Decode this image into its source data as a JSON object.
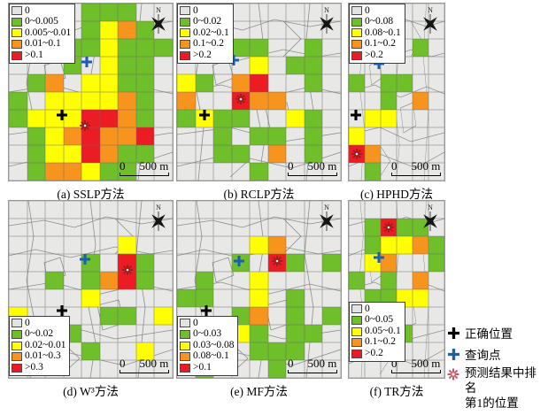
{
  "palette": {
    ".": "",
    "G": "#6FBF2A",
    "Y": "#FFFF00",
    "O": "#F7941E",
    "R": "#EC1C24",
    "zero_swatch": "#E3E3E2"
  },
  "marker_colors": {
    "query": "#1A5FB4",
    "correct": "#000000",
    "top1": "#9E1B1B",
    "top1_legend": "#D4566A"
  },
  "legend_swatch_order": [
    ".",
    "G",
    "Y",
    "O",
    "R"
  ],
  "north_label": "N",
  "scale": {
    "zero": "0",
    "distance": "500 m"
  },
  "panels": [
    {
      "id": "a",
      "caption": "(a) SSLP方法",
      "cols": 9,
      "rows": 10,
      "legend_position": "top-left",
      "legend_labels": [
        "0",
        "0~0.005",
        "0.005~0.01",
        "0.01~0.1",
        ">0.1"
      ],
      "grid": [
        "....GGG..",
        "....GYOG.",
        "...GGYGGG",
        "...G.YGG.",
        ".GO.YYGG.",
        "G.YYYYOG.",
        "GYYYRROG.",
        ".GYOROOR.",
        ".GYYROGG.",
        ".GOOYGG.."
      ],
      "markers": {
        "query": [
          4.3,
          3.3
        ],
        "correct": [
          2.9,
          6.3
        ],
        "top1": [
          4.2,
          6.9
        ]
      }
    },
    {
      "id": "b",
      "caption": "(b) RCLP方法",
      "cols": 9,
      "rows": 10,
      "legend_position": "top-left",
      "legend_labels": [
        "0",
        "0~0.02",
        "0.02~0.1",
        "0.1~0.2",
        ">0.2"
      ],
      "grid": [
        ".........",
        ".........",
        "...GG..G.",
        "....Y.GG.",
        "YG.OR..G.",
        "O..ROO...",
        "GYGG..YG.",
        "..G.GG.G.",
        "..GG.O.G.",
        "....G...."
      ],
      "markers": {
        "query": [
          3.1,
          3.2
        ],
        "correct": [
          1.5,
          6.3
        ],
        "top1": [
          3.5,
          5.4
        ]
      }
    },
    {
      "id": "c",
      "caption": "(c) HPHD方法",
      "cols": 6,
      "rows": 10,
      "legend_position": "top-left",
      "legend_labels": [
        "0",
        "0~0.08",
        "0.08~0.1",
        "0.1~0.2",
        ">0.2"
      ],
      "grid": [
        "......",
        "......",
        ".G..G.",
        "......",
        "G.GG..",
        "..G.O.",
        ".YY...",
        "Y.....",
        "RO....",
        ".G...."
      ],
      "markers": {
        "query": [
          1.9,
          3.4
        ],
        "correct": [
          0.45,
          6.3
        ],
        "top1": [
          0.5,
          8.5
        ]
      }
    },
    {
      "id": "d",
      "caption": "(d) W³方法",
      "cols": 9,
      "rows": 10,
      "legend_position": "bottom-left",
      "legend_labels": [
        "0",
        "0~0.02",
        "0.02~0.01",
        "0.01~0.3",
        ">0.3"
      ],
      "grid": [
        ".........",
        ".........",
        "......Y..",
        "....G.RG.",
        "..G.GORG.",
        "....Y....",
        "Y....GG.Y",
        "..GG.....",
        "....G..Y.",
        "........."
      ],
      "markers": {
        "query": [
          4.2,
          3.3
        ],
        "correct": [
          2.9,
          6.2
        ],
        "top1": [
          6.5,
          3.9
        ]
      }
    },
    {
      "id": "e",
      "caption": "(e) MF方法",
      "cols": 9,
      "rows": 10,
      "legend_position": "bottom-left",
      "legend_labels": [
        "0",
        "0~0.03",
        "0.03~0.08",
        "0.08~0.1",
        ">0.1"
      ],
      "grid": [
        ".........",
        ".........",
        "....YO...",
        "...G.RG.G",
        ".G..Y....",
        "GG..Y.G..",
        "...GO.G.G",
        ".O.YG.GG.",
        "..Y.GGG..",
        ".G...G..."
      ],
      "markers": {
        "query": [
          3.4,
          3.4
        ],
        "correct": [
          1.6,
          6.2
        ],
        "top1": [
          5.5,
          3.4
        ]
      }
    },
    {
      "id": "f",
      "caption": "(f) TR方法",
      "cols": 6,
      "rows": 10,
      "legend_position": "bottom-left",
      "legend_labels": [
        "0",
        "0~0.05",
        "0.05~0.1",
        "0.1~0.2",
        ">0.2"
      ],
      "grid": [
        "......",
        ".GRGG.",
        ".GYYOG",
        ".YO..G",
        "G.G.O.",
        ".GGYY.",
        "..G...",
        "..GG..",
        "......",
        "......"
      ],
      "markers": {
        "query": [
          1.9,
          3.2
        ],
        "correct": [
          0.35,
          6.2
        ],
        "top1": [
          2.5,
          1.5
        ]
      }
    }
  ],
  "side_legend": {
    "items": [
      {
        "symbol": "plus-black",
        "label": "正确位置"
      },
      {
        "symbol": "plus-blue",
        "label": "查询点"
      },
      {
        "symbol": "star-red",
        "label": "预测结果中排名",
        "label2": "第1的位置"
      }
    ]
  }
}
